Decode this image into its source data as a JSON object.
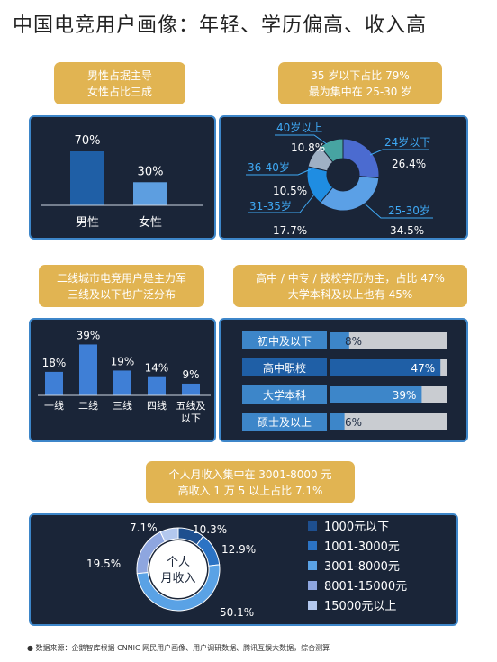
{
  "title": "中国电竞用户画像：年轻、学历偏高、收入高",
  "callouts": {
    "gender": [
      "男性占据主导",
      "女性占比三成"
    ],
    "age": [
      "35 岁以下占比 79%",
      "最为集中在 25-30 岁"
    ],
    "city": [
      "二线城市电竞用户是主力军",
      "三线及以下也广泛分布"
    ],
    "education": [
      "高中 / 中专 / 技校学历为主，占比 47%",
      "大学本科及以上也有 45%"
    ],
    "income": [
      "个人月收入集中在 3001-8000 元",
      "高收入 1 万 5 以上占比 7.1%"
    ]
  },
  "colors": {
    "panel_bg": "#1a2538",
    "panel_border": "#3d86c9",
    "callout": "#e1b452"
  },
  "chart_data": [
    {
      "id": "gender",
      "type": "bar",
      "categories": [
        "男性",
        "女性"
      ],
      "values": [
        70,
        30
      ],
      "value_labels": [
        "70%",
        "30%"
      ],
      "colors": [
        "#1f5fa6",
        "#5d9ee0"
      ],
      "ylim": [
        0,
        100
      ]
    },
    {
      "id": "age",
      "type": "pie",
      "labels": [
        "24岁以下",
        "25-30岁",
        "31-35岁",
        "36-40岁",
        "40岁以上"
      ],
      "values": [
        26.4,
        34.5,
        17.7,
        10.5,
        10.8
      ],
      "value_labels": [
        "26.4%",
        "34.5%",
        "17.7%",
        "10.5%",
        "10.8%"
      ],
      "colors": [
        "#4b6bd0",
        "#5ba0e6",
        "#1f8de2",
        "#9fb0c4",
        "#47a4a2"
      ]
    },
    {
      "id": "city",
      "type": "bar",
      "categories": [
        "一线",
        "二线",
        "三线",
        "四线",
        "五线及以下"
      ],
      "values": [
        18,
        39,
        19,
        14,
        9
      ],
      "value_labels": [
        "18%",
        "39%",
        "19%",
        "14%",
        "9%"
      ],
      "ylim": [
        0,
        40
      ]
    },
    {
      "id": "education",
      "type": "bar",
      "categories": [
        "初中及以下",
        "高中职校",
        "大学本科",
        "硕士及以上"
      ],
      "values": [
        8,
        47,
        39,
        6
      ],
      "value_labels": [
        "8%",
        "47%",
        "39%",
        "6%"
      ],
      "xlim": [
        0,
        100
      ]
    },
    {
      "id": "income",
      "type": "pie",
      "center_label": [
        "个人",
        "月收入"
      ],
      "labels": [
        "1000元以下",
        "1001-3000元",
        "3001-8000元",
        "8001-15000元",
        "15000元以上"
      ],
      "values": [
        10.3,
        12.9,
        50.1,
        19.5,
        7.1
      ],
      "value_labels": [
        "10.3%",
        "12.9%",
        "50.1%",
        "19.5%",
        "7.1%"
      ],
      "colors": [
        "#1e4f8f",
        "#2b73c4",
        "#5aa2e5",
        "#8ea6df",
        "#b3c8ee"
      ]
    }
  ],
  "footer": "数据来源：企鹅智库根据 CNNIC 网民用户画像、用户调研数据、腾讯互娱大数据，综合测算"
}
